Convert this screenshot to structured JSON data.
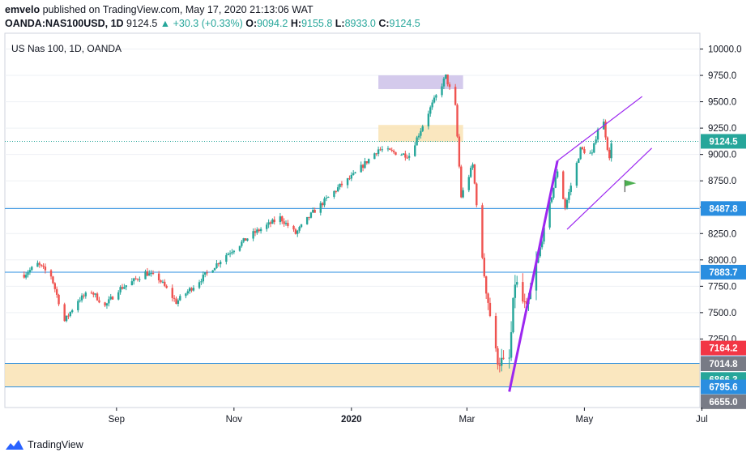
{
  "header": {
    "publisher": "emvelo",
    "published_text": "published on TradingView.com, May 17, 2020 21:13:06 WAT",
    "symbol": "OANDA:NAS100USD, 1D",
    "last": "9124.5",
    "change": "▲ +30.3 (+0.33%)",
    "o_label": "O:",
    "o_value": "9094.2",
    "h_label": "H:",
    "h_value": "9155.8",
    "l_label": "L:",
    "l_value": "8933.0",
    "c_label": "C:",
    "c_value": "9124.5"
  },
  "footer": {
    "brand": "TradingView"
  },
  "colors": {
    "up": "#26a69a",
    "down": "#ef5350",
    "hline": "#2a8ee0",
    "zone_purple": "#c5b8e6",
    "zone_yellow": "#f9e3b4",
    "trend": "#9c27f0",
    "flag": "#4caf50",
    "axis_text": "#131722",
    "grid": "#eef0f4"
  },
  "chart_data": {
    "type": "candlestick",
    "title": "US Nas 100, 1D, OANDA",
    "xlabel": "",
    "ylabel": "",
    "ylim": [
      6600,
      10150
    ],
    "y_ticks": [
      10000,
      9750,
      9500,
      9250,
      9000,
      8750,
      8500,
      8250,
      8000,
      7750,
      7500,
      7250
    ],
    "x_ticks": [
      "Sep",
      "Nov",
      "2020",
      "Mar",
      "May",
      "Jul"
    ],
    "price_anchors": [
      {
        "date": "Jul 15",
        "value": 7860
      },
      {
        "date": "Jul 22",
        "value": 7960
      },
      {
        "date": "Jul 29",
        "value": 7850
      },
      {
        "date": "Aug 05",
        "value": 7420
      },
      {
        "date": "Aug 12",
        "value": 7620
      },
      {
        "date": "Aug 19",
        "value": 7700
      },
      {
        "date": "Aug 26",
        "value": 7560
      },
      {
        "date": "Sep 02",
        "value": 7720
      },
      {
        "date": "Sep 09",
        "value": 7790
      },
      {
        "date": "Sep 16",
        "value": 7880
      },
      {
        "date": "Sep 23",
        "value": 7820
      },
      {
        "date": "Oct 02",
        "value": 7600
      },
      {
        "date": "Oct 15",
        "value": 7820
      },
      {
        "date": "Oct 28",
        "value": 8050
      },
      {
        "date": "Nov 11",
        "value": 8250
      },
      {
        "date": "Nov 25",
        "value": 8400
      },
      {
        "date": "Dec 03",
        "value": 8250
      },
      {
        "date": "Dec 12",
        "value": 8450
      },
      {
        "date": "Dec 26",
        "value": 8700
      },
      {
        "date": "Jan 02",
        "value": 8800
      },
      {
        "date": "Jan 15",
        "value": 9050
      },
      {
        "date": "Jan 31",
        "value": 8990
      },
      {
        "date": "Feb 10",
        "value": 9400
      },
      {
        "date": "Feb 19",
        "value": 9740
      },
      {
        "date": "Feb 24",
        "value": 9450
      },
      {
        "date": "Feb 27",
        "value": 8600
      },
      {
        "date": "Mar 04",
        "value": 8900
      },
      {
        "date": "Mar 09",
        "value": 8000
      },
      {
        "date": "Mar 16",
        "value": 7100
      },
      {
        "date": "Mar 20",
        "value": 7000
      },
      {
        "date": "Mar 23",
        "value": 7050
      },
      {
        "date": "Mar 26",
        "value": 7800
      },
      {
        "date": "Apr 01",
        "value": 7500
      },
      {
        "date": "Apr 09",
        "value": 8200
      },
      {
        "date": "Apr 17",
        "value": 8850
      },
      {
        "date": "Apr 21",
        "value": 8500
      },
      {
        "date": "Apr 29",
        "value": 9050
      },
      {
        "date": "May 05",
        "value": 9000
      },
      {
        "date": "May 08",
        "value": 9250
      },
      {
        "date": "May 11",
        "value": 9300
      },
      {
        "date": "May 14",
        "value": 8950
      },
      {
        "date": "May 15",
        "value": 9124.5
      }
    ],
    "horizontal_lines": [
      8487.8,
      7883.7,
      7019.0,
      6795.6
    ],
    "dotted_line": 9124.5,
    "zones": [
      {
        "from": 9620,
        "to": 9750,
        "start": "Jan 15",
        "color": "purple"
      },
      {
        "from": 9120,
        "to": 9280,
        "start": "Jan 15",
        "color": "yellow"
      },
      {
        "from": 6800,
        "to": 7020,
        "start": "Jul 01",
        "color": "yellow"
      }
    ],
    "trend_line": {
      "from": {
        "date": "Mar 23",
        "value": 6750
      },
      "to": {
        "date": "Apr 17",
        "value": 8940
      }
    },
    "channel": {
      "upper": {
        "from": {
          "date": "Apr 17",
          "value": 8940
        },
        "to": {
          "date": "May 31",
          "value": 9550
        }
      },
      "lower": {
        "from": {
          "date": "Apr 22",
          "value": 8290
        },
        "to": {
          "date": "Jun 05",
          "value": 9060
        }
      }
    },
    "price_labels": [
      {
        "value": 9124.5,
        "text": "9124.5",
        "bg": "#26a69a"
      },
      {
        "value": 8487.8,
        "text": "8487.8",
        "bg": "#2a8ee0"
      },
      {
        "value": 7883.7,
        "text": "7883.7",
        "bg": "#2a8ee0"
      },
      {
        "value": 7164.2,
        "text": "7164.2",
        "bg": "#f23645"
      },
      {
        "value": 7019.0,
        "text": "7019.0",
        "bg": "#2a8ee0"
      },
      {
        "value": 7014.8,
        "text": "7014.8",
        "bg": "#787b86"
      },
      {
        "value": 6866.3,
        "text": "6866.3",
        "bg": "#26a69a"
      },
      {
        "value": 6795.6,
        "text": "6795.6",
        "bg": "#2a8ee0"
      },
      {
        "value": 6655.0,
        "text": "6655.0",
        "bg": "#787b86"
      }
    ]
  }
}
